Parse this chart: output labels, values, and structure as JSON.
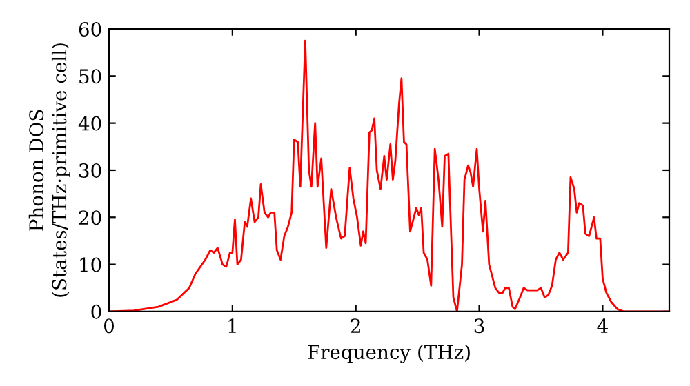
{
  "chart_data": {
    "type": "line",
    "xlabel": "Frequency (THz)",
    "ylabel": "Phonon DOS\n(States/THz·primitive cell)",
    "xlim": [
      0,
      4.54
    ],
    "ylim": [
      0,
      60
    ],
    "xticks": [
      0,
      1,
      2,
      3,
      4
    ],
    "yticks": [
      0,
      10,
      20,
      30,
      40,
      50,
      60
    ],
    "grid": false,
    "legend": false,
    "marker": "none",
    "line_style": "solid",
    "series": [
      {
        "color": "#ff0000",
        "x": [
          0,
          0.2,
          0.4,
          0.55,
          0.65,
          0.7,
          0.78,
          0.82,
          0.85,
          0.88,
          0.92,
          0.95,
          0.98,
          1.0,
          1.02,
          1.04,
          1.07,
          1.1,
          1.12,
          1.15,
          1.18,
          1.21,
          1.23,
          1.26,
          1.29,
          1.31,
          1.34,
          1.36,
          1.39,
          1.42,
          1.45,
          1.48,
          1.5,
          1.53,
          1.55,
          1.59,
          1.62,
          1.64,
          1.67,
          1.69,
          1.72,
          1.76,
          1.8,
          1.84,
          1.88,
          1.91,
          1.95,
          1.98,
          2.01,
          2.04,
          2.06,
          2.08,
          2.11,
          2.13,
          2.15,
          2.17,
          2.2,
          2.23,
          2.25,
          2.28,
          2.3,
          2.32,
          2.35,
          2.37,
          2.39,
          2.41,
          2.44,
          2.47,
          2.49,
          2.51,
          2.53,
          2.55,
          2.58,
          2.61,
          2.64,
          2.67,
          2.7,
          2.72,
          2.75,
          2.79,
          2.82,
          2.86,
          2.88,
          2.91,
          2.93,
          2.95,
          2.98,
          3.0,
          3.03,
          3.05,
          3.08,
          3.1,
          3.13,
          3.16,
          3.19,
          3.21,
          3.24,
          3.27,
          3.29,
          3.33,
          3.36,
          3.39,
          3.43,
          3.47,
          3.5,
          3.53,
          3.56,
          3.59,
          3.62,
          3.65,
          3.68,
          3.72,
          3.74,
          3.77,
          3.79,
          3.81,
          3.84,
          3.86,
          3.89,
          3.93,
          3.95,
          3.98,
          4.0,
          4.03,
          4.07,
          4.12,
          4.17,
          4.54
        ],
        "values": [
          0,
          0.2,
          1,
          2.5,
          5,
          8,
          11,
          13,
          12.5,
          13.5,
          10,
          9.5,
          12.5,
          12.5,
          19.5,
          10,
          11,
          19,
          18,
          24,
          19,
          20,
          27,
          21,
          20,
          21,
          21,
          13,
          11,
          16,
          18,
          21,
          36.5,
          36,
          26.5,
          57.5,
          30,
          26.5,
          40,
          26.5,
          32.5,
          13.5,
          26,
          20,
          15.5,
          16,
          30.5,
          24,
          20,
          14,
          17,
          14.5,
          38,
          38.5,
          41,
          30,
          26,
          33,
          28,
          35.5,
          28,
          32,
          44,
          49.5,
          36,
          35.5,
          17,
          20,
          22,
          20.5,
          22,
          12.5,
          11,
          5.5,
          34.5,
          28,
          18,
          33,
          33.5,
          3,
          0,
          10,
          28,
          31,
          29.5,
          26.5,
          34.5,
          26,
          17,
          23.5,
          10,
          8,
          5,
          4,
          4,
          5,
          5,
          1,
          0.5,
          3,
          5,
          4.5,
          4.5,
          4.5,
          5,
          3,
          3.5,
          5.5,
          11,
          12.5,
          11,
          12.5,
          28.5,
          26,
          21,
          23,
          22.5,
          16.5,
          16,
          20,
          15.5,
          15.5,
          7,
          4,
          2,
          0.5,
          0,
          0
        ]
      }
    ]
  }
}
